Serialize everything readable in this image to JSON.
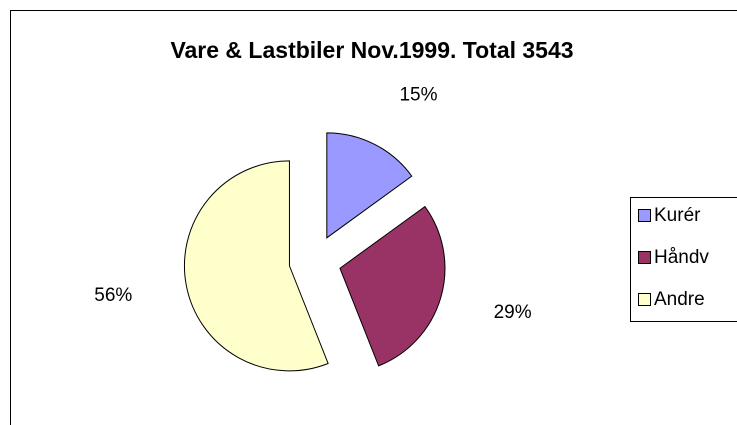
{
  "chart_data": {
    "type": "pie",
    "title": "Vare & Lastbiler Nov.1999. Total 3543",
    "categories": [
      "Kurér",
      "Håndv",
      "Andre"
    ],
    "values": [
      15,
      29,
      56
    ],
    "value_labels": [
      "15%",
      "29%",
      "56%"
    ],
    "colors": [
      "#9999ff",
      "#993366",
      "#ffffcc"
    ],
    "exploded": true,
    "legend": "right"
  }
}
